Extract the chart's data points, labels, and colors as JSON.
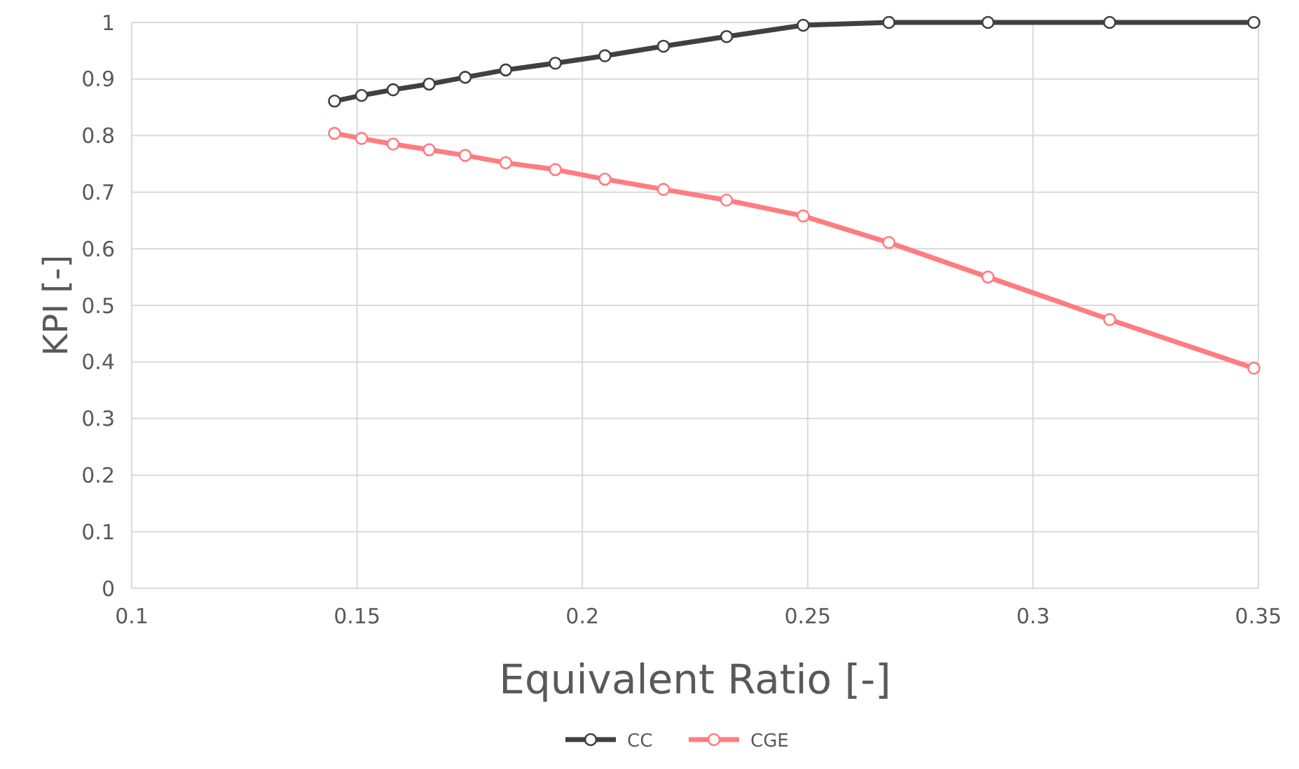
{
  "chart_data": {
    "type": "line",
    "xlabel": "Equivalent Ratio [-]",
    "ylabel": "KPI [-]",
    "xlim": [
      0.1,
      0.35
    ],
    "xticks": [
      0.1,
      0.15,
      0.2,
      0.25,
      0.3,
      0.35
    ],
    "ylim": [
      0,
      1
    ],
    "yticks": [
      0,
      0.1,
      0.2,
      0.3,
      0.4,
      0.5,
      0.6,
      0.7,
      0.8,
      0.9,
      1
    ],
    "x": [
      0.145,
      0.151,
      0.158,
      0.166,
      0.174,
      0.183,
      0.194,
      0.205,
      0.218,
      0.232,
      0.249,
      0.268,
      0.29,
      0.317,
      0.349
    ],
    "grid": true,
    "legend": "bottom",
    "marker": "circle",
    "line_style": "solid",
    "series": [
      {
        "name": "CC",
        "color": "#404040",
        "values": [
          0.861,
          0.871,
          0.881,
          0.891,
          0.903,
          0.916,
          0.928,
          0.941,
          0.958,
          0.975,
          0.995,
          1,
          1,
          1,
          1
        ]
      },
      {
        "name": "CGE",
        "color": "#ff7c80",
        "values": [
          0.804,
          0.795,
          0.785,
          0.775,
          0.765,
          0.752,
          0.74,
          0.723,
          0.705,
          0.686,
          0.658,
          0.611,
          0.55,
          0.475,
          0.389
        ]
      }
    ]
  }
}
